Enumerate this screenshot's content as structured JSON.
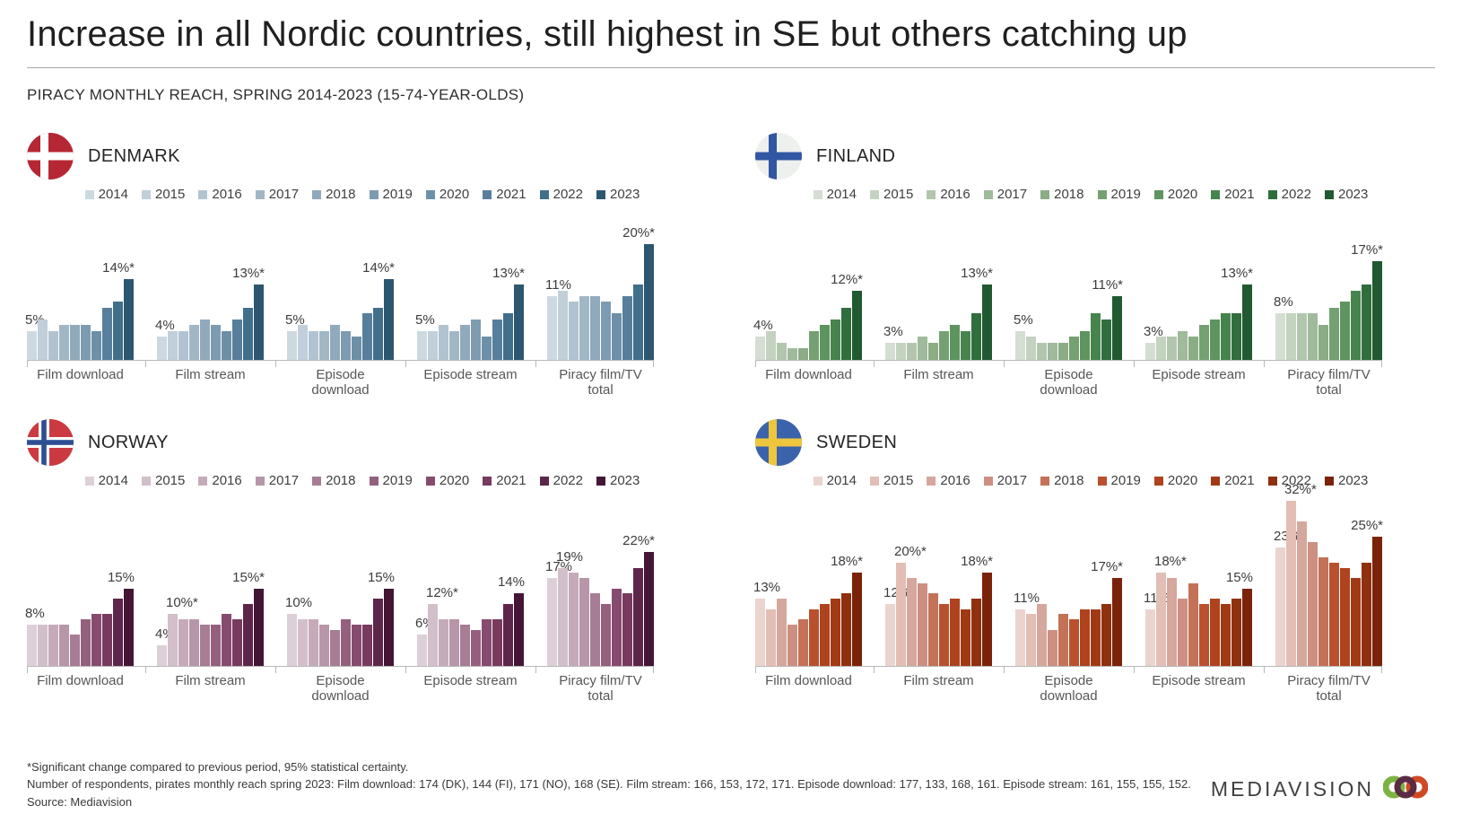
{
  "page": {
    "title": "Increase in all Nordic countries, still highest in SE but others catching up",
    "subtitle": "PIRACY MONTHLY REACH, SPRING 2014-2023 (15-74-YEAR-OLDS)",
    "footer": {
      "line1": "*Significant change compared to previous period, 95% statistical certainty.",
      "line2": "Number of respondents, pirates monthly reach spring 2023: Film download: 174 (DK), 144 (FI), 171 (NO), 168 (SE). Film stream: 166, 153, 172, 171. Episode download: 177, 133, 168, 161. Episode stream: 161, 155, 155, 152.",
      "line3": "Source: Mediavision"
    },
    "logo": {
      "text": "MEDIAVISION",
      "ring_colors": [
        "#7cb342",
        "#5b2a45",
        "#cf4a24"
      ]
    }
  },
  "chart_data": [
    {
      "type": "bar",
      "country": "DENMARK",
      "flag_icon": "denmark-flag-icon",
      "flag_colors": {
        "bg": "#b62734",
        "cross": "#ffffff"
      },
      "years": [
        "2014",
        "2015",
        "2016",
        "2017",
        "2018",
        "2019",
        "2020",
        "2021",
        "2022",
        "2023"
      ],
      "palette": [
        "#cdd9e1",
        "#c0cfd9",
        "#b1c3d0",
        "#a1b7c6",
        "#90aabc",
        "#7d9bb1",
        "#6d90a8",
        "#577f9b",
        "#416f8a",
        "#2d5670"
      ],
      "unit": "%",
      "ylim": [
        0,
        20
      ],
      "legend_position": "top",
      "grid": false,
      "groups": [
        {
          "label": "Film download",
          "values": [
            5,
            7,
            5,
            6,
            6,
            6,
            5,
            9,
            10,
            14
          ],
          "annotations": {
            "0": "5%",
            "9": "14%*"
          }
        },
        {
          "label": "Film stream",
          "values": [
            4,
            5,
            5,
            6,
            7,
            6,
            5,
            7,
            9,
            13
          ],
          "annotations": {
            "0": "4%",
            "9": "13%*"
          }
        },
        {
          "label": "Episode download",
          "values": [
            5,
            6,
            5,
            5,
            6,
            5,
            4,
            8,
            9,
            14
          ],
          "annotations": {
            "0": "5%",
            "9": "14%*"
          }
        },
        {
          "label": "Episode stream",
          "values": [
            5,
            5,
            6,
            5,
            6,
            7,
            4,
            7,
            8,
            13
          ],
          "annotations": {
            "0": "5%",
            "9": "13%*"
          }
        },
        {
          "label": "Piracy film/TV total",
          "values": [
            11,
            12,
            10,
            11,
            11,
            10,
            8,
            11,
            13,
            20
          ],
          "annotations": {
            "0": "11%",
            "9": "20%*"
          }
        }
      ]
    },
    {
      "type": "bar",
      "country": "FINLAND",
      "flag_icon": "finland-flag-icon",
      "flag_colors": {
        "bg": "#eef0ee",
        "cross": "#3156a3"
      },
      "years": [
        "2014",
        "2015",
        "2016",
        "2017",
        "2018",
        "2019",
        "2020",
        "2021",
        "2022",
        "2023"
      ],
      "palette": [
        "#d4ded2",
        "#c4d2c0",
        "#b2c6ae",
        "#a0ba9c",
        "#8cac86",
        "#75a172",
        "#5e945f",
        "#47844d",
        "#316e3e",
        "#215a31"
      ],
      "unit": "%",
      "ylim": [
        0,
        17
      ],
      "legend_position": "top",
      "grid": false,
      "groups": [
        {
          "label": "Film download",
          "values": [
            4,
            5,
            3,
            2,
            2,
            5,
            6,
            7,
            9,
            12
          ],
          "annotations": {
            "0": "4%",
            "9": "12%*"
          }
        },
        {
          "label": "Film stream",
          "values": [
            3,
            3,
            3,
            4,
            3,
            5,
            6,
            5,
            8,
            13
          ],
          "annotations": {
            "0": "3%",
            "9": "13%*"
          }
        },
        {
          "label": "Episode download",
          "values": [
            5,
            4,
            3,
            3,
            3,
            4,
            5,
            8,
            7,
            11
          ],
          "annotations": {
            "0": "5%",
            "9": "11%*"
          }
        },
        {
          "label": "Episode stream",
          "values": [
            3,
            4,
            4,
            5,
            4,
            6,
            7,
            8,
            8,
            13
          ],
          "annotations": {
            "0": "3%",
            "9": "13%*"
          }
        },
        {
          "label": "Piracy film/TV total",
          "values": [
            8,
            8,
            8,
            8,
            6,
            9,
            10,
            12,
            13,
            17
          ],
          "annotations": {
            "0": "8%",
            "9": "17%*"
          }
        }
      ]
    },
    {
      "type": "bar",
      "country": "NORWAY",
      "flag_icon": "norway-flag-icon",
      "flag_colors": {
        "bg": "#cb3a41",
        "cross": "#ffffff",
        "inner": "#2d4e93"
      },
      "years": [
        "2014",
        "2015",
        "2016",
        "2017",
        "2018",
        "2019",
        "2020",
        "2021",
        "2022",
        "2023"
      ],
      "palette": [
        "#ddcfd8",
        "#d2bfca",
        "#c5abba",
        "#b696a8",
        "#a67d94",
        "#94607e",
        "#874b6f",
        "#783a5f",
        "#5e254a",
        "#451535"
      ],
      "unit": "%",
      "ylim": [
        0,
        22
      ],
      "legend_position": "top",
      "grid": false,
      "groups": [
        {
          "label": "Film download",
          "values": [
            8,
            8,
            8,
            8,
            6,
            9,
            10,
            10,
            13,
            15
          ],
          "annotations": {
            "0": "8%",
            "9": "15%"
          }
        },
        {
          "label": "Film stream",
          "values": [
            4,
            10,
            9,
            9,
            8,
            8,
            10,
            9,
            12,
            15
          ],
          "annotations": {
            "0": "4%",
            "1": "10%*",
            "9": "15%*"
          }
        },
        {
          "label": "Episode download",
          "values": [
            10,
            9,
            9,
            8,
            7,
            9,
            8,
            8,
            13,
            15
          ],
          "annotations": {
            "0": "10%",
            "9": "15%"
          }
        },
        {
          "label": "Episode stream",
          "values": [
            6,
            12,
            9,
            9,
            8,
            7,
            9,
            9,
            12,
            14
          ],
          "annotations": {
            "0": "6%",
            "1": "12%*",
            "9": "14%"
          }
        },
        {
          "label": "Piracy film/TV total",
          "values": [
            17,
            19,
            18,
            17,
            14,
            12,
            15,
            14,
            19,
            22
          ],
          "annotations": {
            "0": "17%",
            "1": "19%",
            "9": "22%*"
          }
        }
      ]
    },
    {
      "type": "bar",
      "country": "SWEDEN",
      "flag_icon": "sweden-flag-icon",
      "flag_colors": {
        "bg": "#3b63ab",
        "cross": "#eec63d"
      },
      "years": [
        "2014",
        "2015",
        "2016",
        "2017",
        "2018",
        "2019",
        "2020",
        "2021",
        "2022",
        "2023"
      ],
      "palette": [
        "#ecd4ce",
        "#e2beb5",
        "#d6a79c",
        "#cc8f81",
        "#c37257",
        "#ba512e",
        "#ae431d",
        "#a13a14",
        "#8f300e",
        "#7b2309"
      ],
      "unit": "%",
      "ylim": [
        0,
        32
      ],
      "legend_position": "top",
      "grid": false,
      "groups": [
        {
          "label": "Film download",
          "values": [
            13,
            11,
            13,
            8,
            9,
            11,
            12,
            13,
            14,
            18
          ],
          "annotations": {
            "0": "13%",
            "9": "18%*"
          }
        },
        {
          "label": "Film stream",
          "values": [
            12,
            20,
            17,
            16,
            14,
            12,
            13,
            11,
            13,
            18
          ],
          "annotations": {
            "0": "12%",
            "1": "20%*",
            "9": "18%*"
          }
        },
        {
          "label": "Episode download",
          "values": [
            11,
            10,
            12,
            7,
            10,
            9,
            11,
            11,
            12,
            17
          ],
          "annotations": {
            "0": "11%",
            "9": "17%*"
          }
        },
        {
          "label": "Episode stream",
          "values": [
            11,
            18,
            17,
            13,
            16,
            12,
            13,
            12,
            13,
            15
          ],
          "annotations": {
            "0": "11%",
            "1": "18%*",
            "9": "15%"
          }
        },
        {
          "label": "Piracy film/TV total",
          "values": [
            23,
            32,
            28,
            24,
            21,
            20,
            19,
            17,
            20,
            25
          ],
          "annotations": {
            "0": "23%",
            "1": "32%*",
            "9": "25%*"
          }
        }
      ]
    }
  ]
}
